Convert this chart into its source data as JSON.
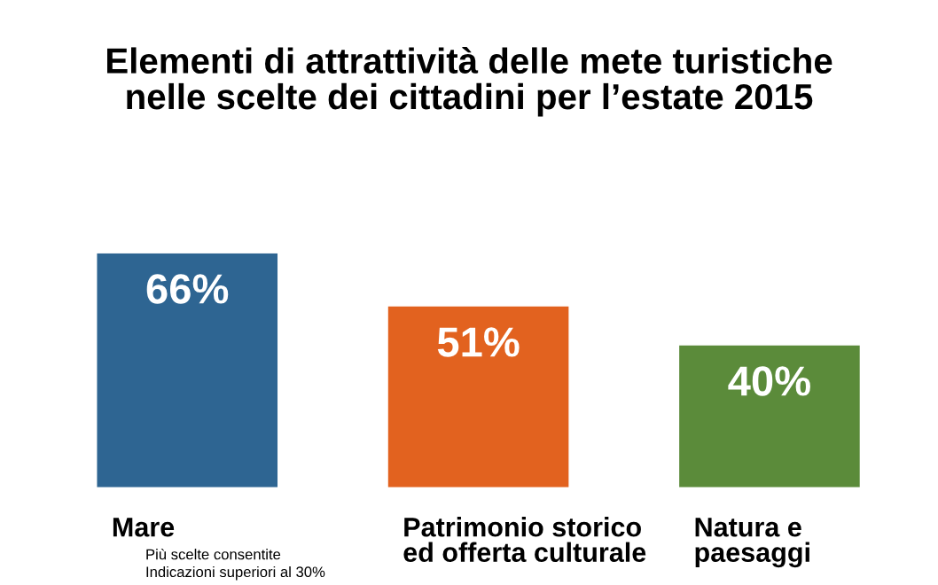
{
  "chart_data": {
    "type": "bar",
    "title": "Elementi di attrattività delle mete turistiche\nnelle scelte dei cittadini per l’estate 2015",
    "categories": [
      "Mare",
      "Patrimonio storico\ned offerta culturale",
      "Natura e\npaesaggi"
    ],
    "values": [
      66,
      51,
      40
    ],
    "colors": [
      "#2e6592",
      "#e2621f",
      "#5b8b3a"
    ],
    "value_labels": [
      "66%",
      "51%",
      "40%"
    ],
    "annotations": [
      "Più scelte consentite",
      "Indicazioni superiori al 30%"
    ]
  }
}
